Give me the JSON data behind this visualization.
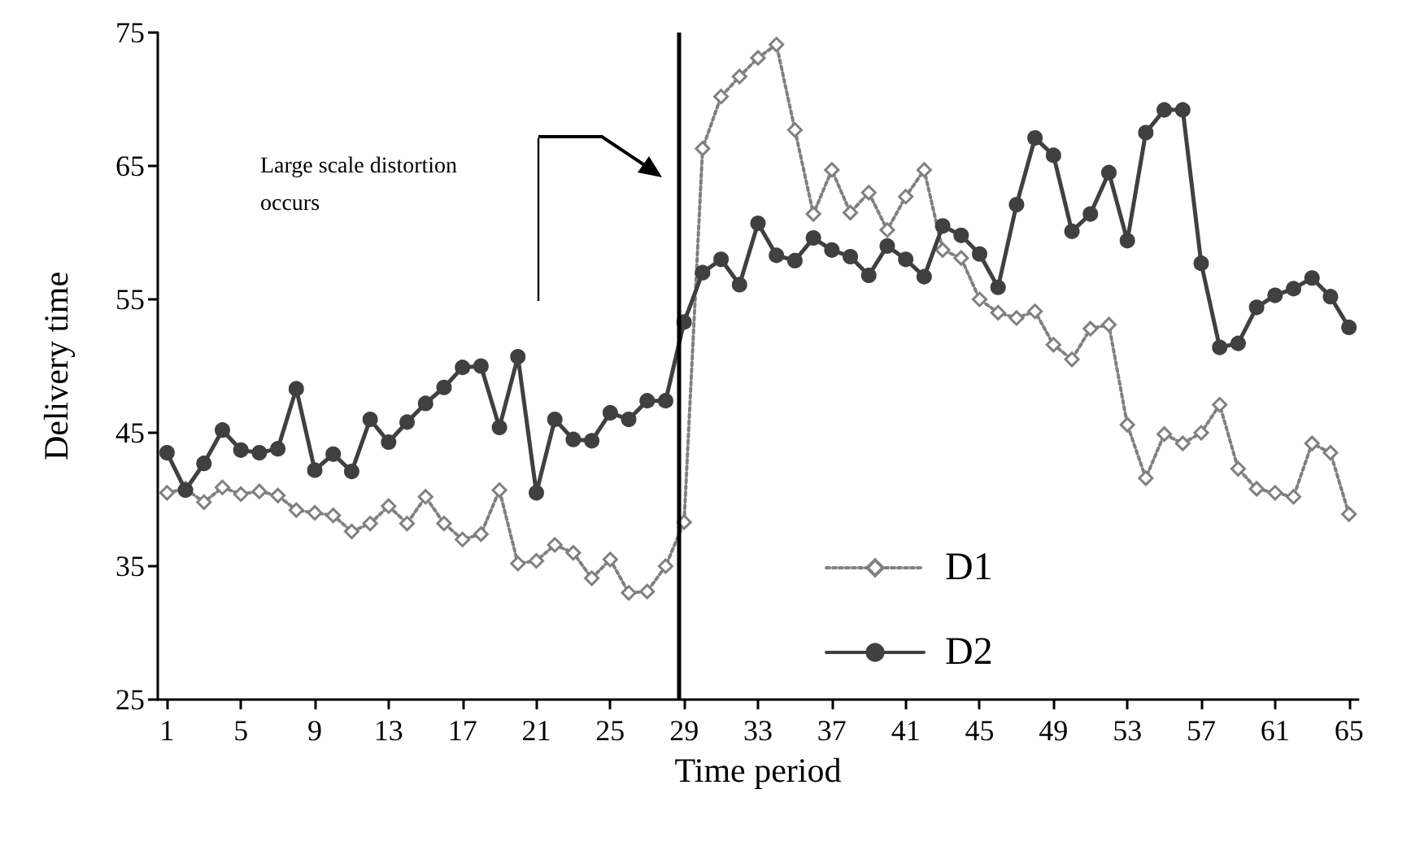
{
  "chart_data": {
    "type": "line",
    "xlabel": "Time period",
    "ylabel": "Delivery time",
    "x": [
      1,
      2,
      3,
      4,
      5,
      6,
      7,
      8,
      9,
      10,
      11,
      12,
      13,
      14,
      15,
      16,
      17,
      18,
      19,
      20,
      21,
      22,
      23,
      24,
      25,
      26,
      27,
      28,
      29,
      30,
      31,
      32,
      33,
      34,
      35,
      36,
      37,
      38,
      39,
      40,
      41,
      42,
      43,
      44,
      45,
      46,
      47,
      48,
      49,
      50,
      51,
      52,
      53,
      54,
      55,
      56,
      57,
      58,
      59,
      60,
      61,
      62,
      63,
      64,
      65
    ],
    "xlim": [
      0.5,
      65.5
    ],
    "xticks": [
      1,
      5,
      9,
      13,
      17,
      21,
      25,
      29,
      33,
      37,
      41,
      45,
      49,
      53,
      57,
      61,
      65
    ],
    "ylim": [
      25,
      75
    ],
    "yticks": [
      25,
      35,
      45,
      55,
      65,
      75
    ],
    "series": [
      {
        "name": "D1",
        "color": "#808080",
        "marker": "diamond",
        "line_style": "dotted",
        "values": [
          40.5,
          40.8,
          39.8,
          40.9,
          40.4,
          40.6,
          40.3,
          39.2,
          39,
          38.8,
          37.6,
          38.2,
          39.5,
          38.2,
          40.2,
          38.2,
          37,
          37.4,
          40.7,
          35.2,
          35.4,
          36.6,
          36,
          34.1,
          35.5,
          33,
          33.1,
          35,
          38.3,
          66.3,
          70.2,
          71.7,
          73.1,
          74.1,
          67.7,
          61.4,
          64.7,
          61.5,
          63,
          60.2,
          62.7,
          64.7,
          58.7,
          58.1,
          55,
          54,
          53.6,
          54.1,
          51.6,
          50.5,
          52.8,
          53.1,
          45.6,
          41.6,
          44.9,
          44.2,
          45,
          47.1,
          42.3,
          40.8,
          40.5,
          40.2,
          44.2,
          43.5,
          38.9
        ]
      },
      {
        "name": "D2",
        "color": "#404040",
        "marker": "circle",
        "line_style": "solid",
        "values": [
          43.5,
          40.7,
          42.7,
          45.2,
          43.7,
          43.5,
          43.8,
          48.3,
          42.2,
          43.4,
          42.1,
          46,
          44.3,
          45.8,
          47.2,
          48.4,
          49.9,
          50,
          45.4,
          50.7,
          40.5,
          46,
          44.5,
          44.4,
          46.5,
          46,
          47.4,
          47.4,
          53.3,
          57,
          58,
          56.1,
          60.7,
          58.3,
          57.9,
          59.6,
          58.7,
          58.2,
          56.8,
          59,
          58,
          56.7,
          60.5,
          59.8,
          58.4,
          55.9,
          62.1,
          67.1,
          65.8,
          60.1,
          61.4,
          64.5,
          59.4,
          67.5,
          69.2,
          69.2,
          57.7,
          51.4,
          51.7,
          54.4,
          55.3,
          55.8,
          56.6,
          55.2,
          52.9
        ]
      }
    ],
    "ref_lines": [
      {
        "axis": "x",
        "value": 28.7,
        "color": "#000000",
        "line_style": "solid"
      }
    ],
    "annotations": [
      "Large scale distortion occurs"
    ],
    "legend": "bottom",
    "grid": false
  }
}
